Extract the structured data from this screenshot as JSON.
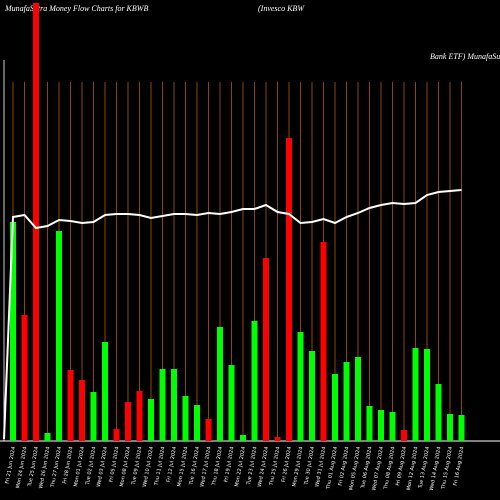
{
  "chart_data": {
    "type": "bar",
    "title": "MunafaSutra  Money Flow  Charts for KBWB",
    "subtitle": "(Invesco  KBW",
    "title_right": "Bank ETF) MunafaSutra.com",
    "categories": [
      "Fri 21 Jun 2024",
      "Mon 24 Jun 2024",
      "Tue 25 Jun 2024",
      "Wed 26 Jun 2024",
      "Thu 27 Jun 2024",
      "Fri 28 Jun 2024",
      "Mon 01 Jul 2024",
      "Tue 02 Jul 2024",
      "Wed 03 Jul 2024",
      "Fri 05 Jul 2024",
      "Mon 08 Jul 2024",
      "Tue 09 Jul 2024",
      "Wed 10 Jul 2024",
      "Thu 11 Jul 2024",
      "Fri 12 Jul 2024",
      "Mon 15 Jul 2024",
      "Tue 16 Jul 2024",
      "Wed 17 Jul 2024",
      "Thu 18 Jul 2024",
      "Fri 19 Jul 2024",
      "Mon 22 Jul 2024",
      "Tue 23 Jul 2024",
      "Wed 24 Jul 2024",
      "Thu 25 Jul 2024",
      "Fri 26 Jul 2024",
      "Mon 29 Jul 2024",
      "Tue 30 Jul 2024",
      "Wed 31 Jul 2024",
      "Thu 01 Aug 2024",
      "Fri 02 Aug 2024",
      "Mon 05 Aug 2024",
      "Tue 06 Aug 2024",
      "Wed 07 Aug 2024",
      "Thu 08 Aug 2024",
      "Fri 09 Aug 2024",
      "Mon 12 Aug 2024",
      "Tue 13 Aug 2024",
      "Wed 14 Aug 2024",
      "Thu 15 Aug 2024",
      "Fri 16 Aug 2024"
    ],
    "values": [
      219,
      126,
      438,
      8,
      210,
      71,
      61,
      49,
      99,
      12,
      39,
      50,
      42,
      72,
      72,
      45,
      36,
      22,
      114,
      76,
      6,
      120,
      183,
      4,
      303,
      109,
      90,
      199,
      67,
      79,
      84,
      35,
      31,
      29,
      11,
      93,
      92,
      57,
      27,
      26
    ],
    "colors": [
      "#00ff00",
      "#ff0000",
      "#ff0000",
      "#00ff00",
      "#00ff00",
      "#ff0000",
      "#ff0000",
      "#00ff00",
      "#00ff00",
      "#ff0000",
      "#ff0000",
      "#ff0000",
      "#00ff00",
      "#00ff00",
      "#00ff00",
      "#00ff00",
      "#00ff00",
      "#ff0000",
      "#00ff00",
      "#00ff00",
      "#00ff00",
      "#00ff00",
      "#ff0000",
      "#ff0000",
      "#ff0000",
      "#00ff00",
      "#00ff00",
      "#ff0000",
      "#00ff00",
      "#00ff00",
      "#00ff00",
      "#00ff00",
      "#00ff00",
      "#00ff00",
      "#ff0000",
      "#00ff00",
      "#00ff00",
      "#00ff00",
      "#00ff00",
      "#00ff00"
    ],
    "line": {
      "color": "#ffffff",
      "values": [
        224,
        226,
        213,
        215,
        221,
        220,
        218,
        219,
        226,
        227,
        227,
        226,
        223,
        225,
        227,
        227,
        226,
        228,
        227,
        229,
        232,
        232,
        236,
        229,
        227,
        218,
        219,
        222,
        218,
        224,
        228,
        233,
        236,
        238,
        237,
        238,
        246,
        249,
        250,
        251
      ]
    },
    "ylim": [
      0,
      441
    ],
    "grid_color": "#b35900"
  }
}
